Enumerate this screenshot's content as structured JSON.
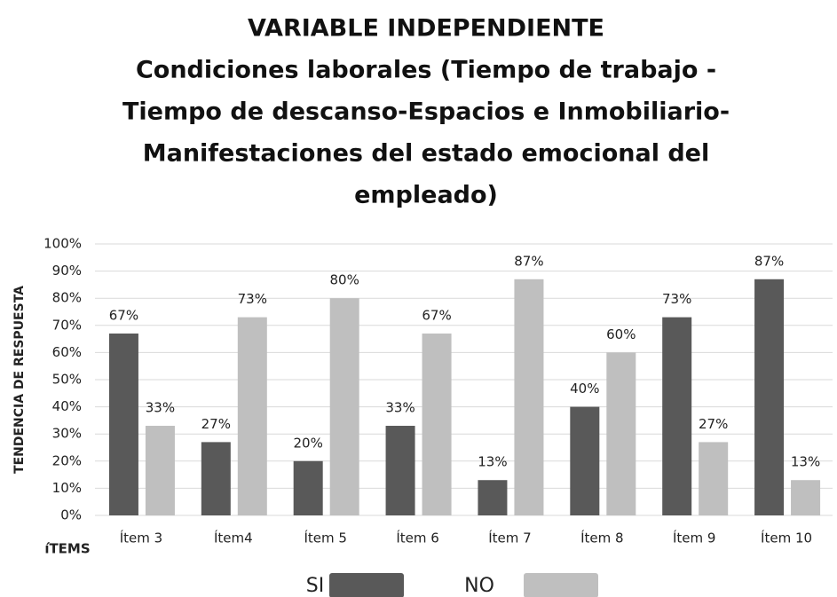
{
  "chart_data": {
    "type": "bar",
    "title": [
      "VARIABLE INDEPENDIENTE",
      "Condiciones laborales (Tiempo de trabajo -",
      "Tiempo de descanso-Espacios e Inmobiliario-",
      "Manifestaciones del estado emocional del",
      "empleado)"
    ],
    "y_label": "TENDENCIA DE RESPUESTA",
    "x_label": "íTEMS",
    "categories": [
      "Ítem 3",
      "Ítem4",
      "Ítem 5",
      "Ítem 6",
      "Ítem 7",
      "Ítem 8",
      "Ítem 9",
      "Ítem 10"
    ],
    "series": [
      {
        "name": "SI",
        "color": "#595959",
        "values": [
          67,
          27,
          20,
          33,
          13,
          40,
          73,
          87
        ],
        "value_labels": [
          "67%",
          "27%",
          "20%",
          "33%",
          "13%",
          "40%",
          "73%",
          "87%"
        ]
      },
      {
        "name": "NO",
        "color": "#bfbfbf",
        "values": [
          33,
          73,
          80,
          67,
          87,
          60,
          27,
          13
        ],
        "value_labels": [
          "33%",
          "73%",
          "80%",
          "67%",
          "87%",
          "60%",
          "27%",
          "13%"
        ]
      }
    ],
    "ylim": [
      0,
      100
    ],
    "yticks": [
      {
        "value": 0,
        "label": "0%"
      },
      {
        "value": 10,
        "label": "10%"
      },
      {
        "value": 20,
        "label": "20%"
      },
      {
        "value": 30,
        "label": "30%"
      },
      {
        "value": 40,
        "label": "40%"
      },
      {
        "value": 50,
        "label": "50%"
      },
      {
        "value": 60,
        "label": "60%"
      },
      {
        "value": 70,
        "label": "70%"
      },
      {
        "value": 80,
        "label": "80%"
      },
      {
        "value": 90,
        "label": "90%"
      },
      {
        "value": 100,
        "label": "100%"
      }
    ],
    "grid": true
  }
}
